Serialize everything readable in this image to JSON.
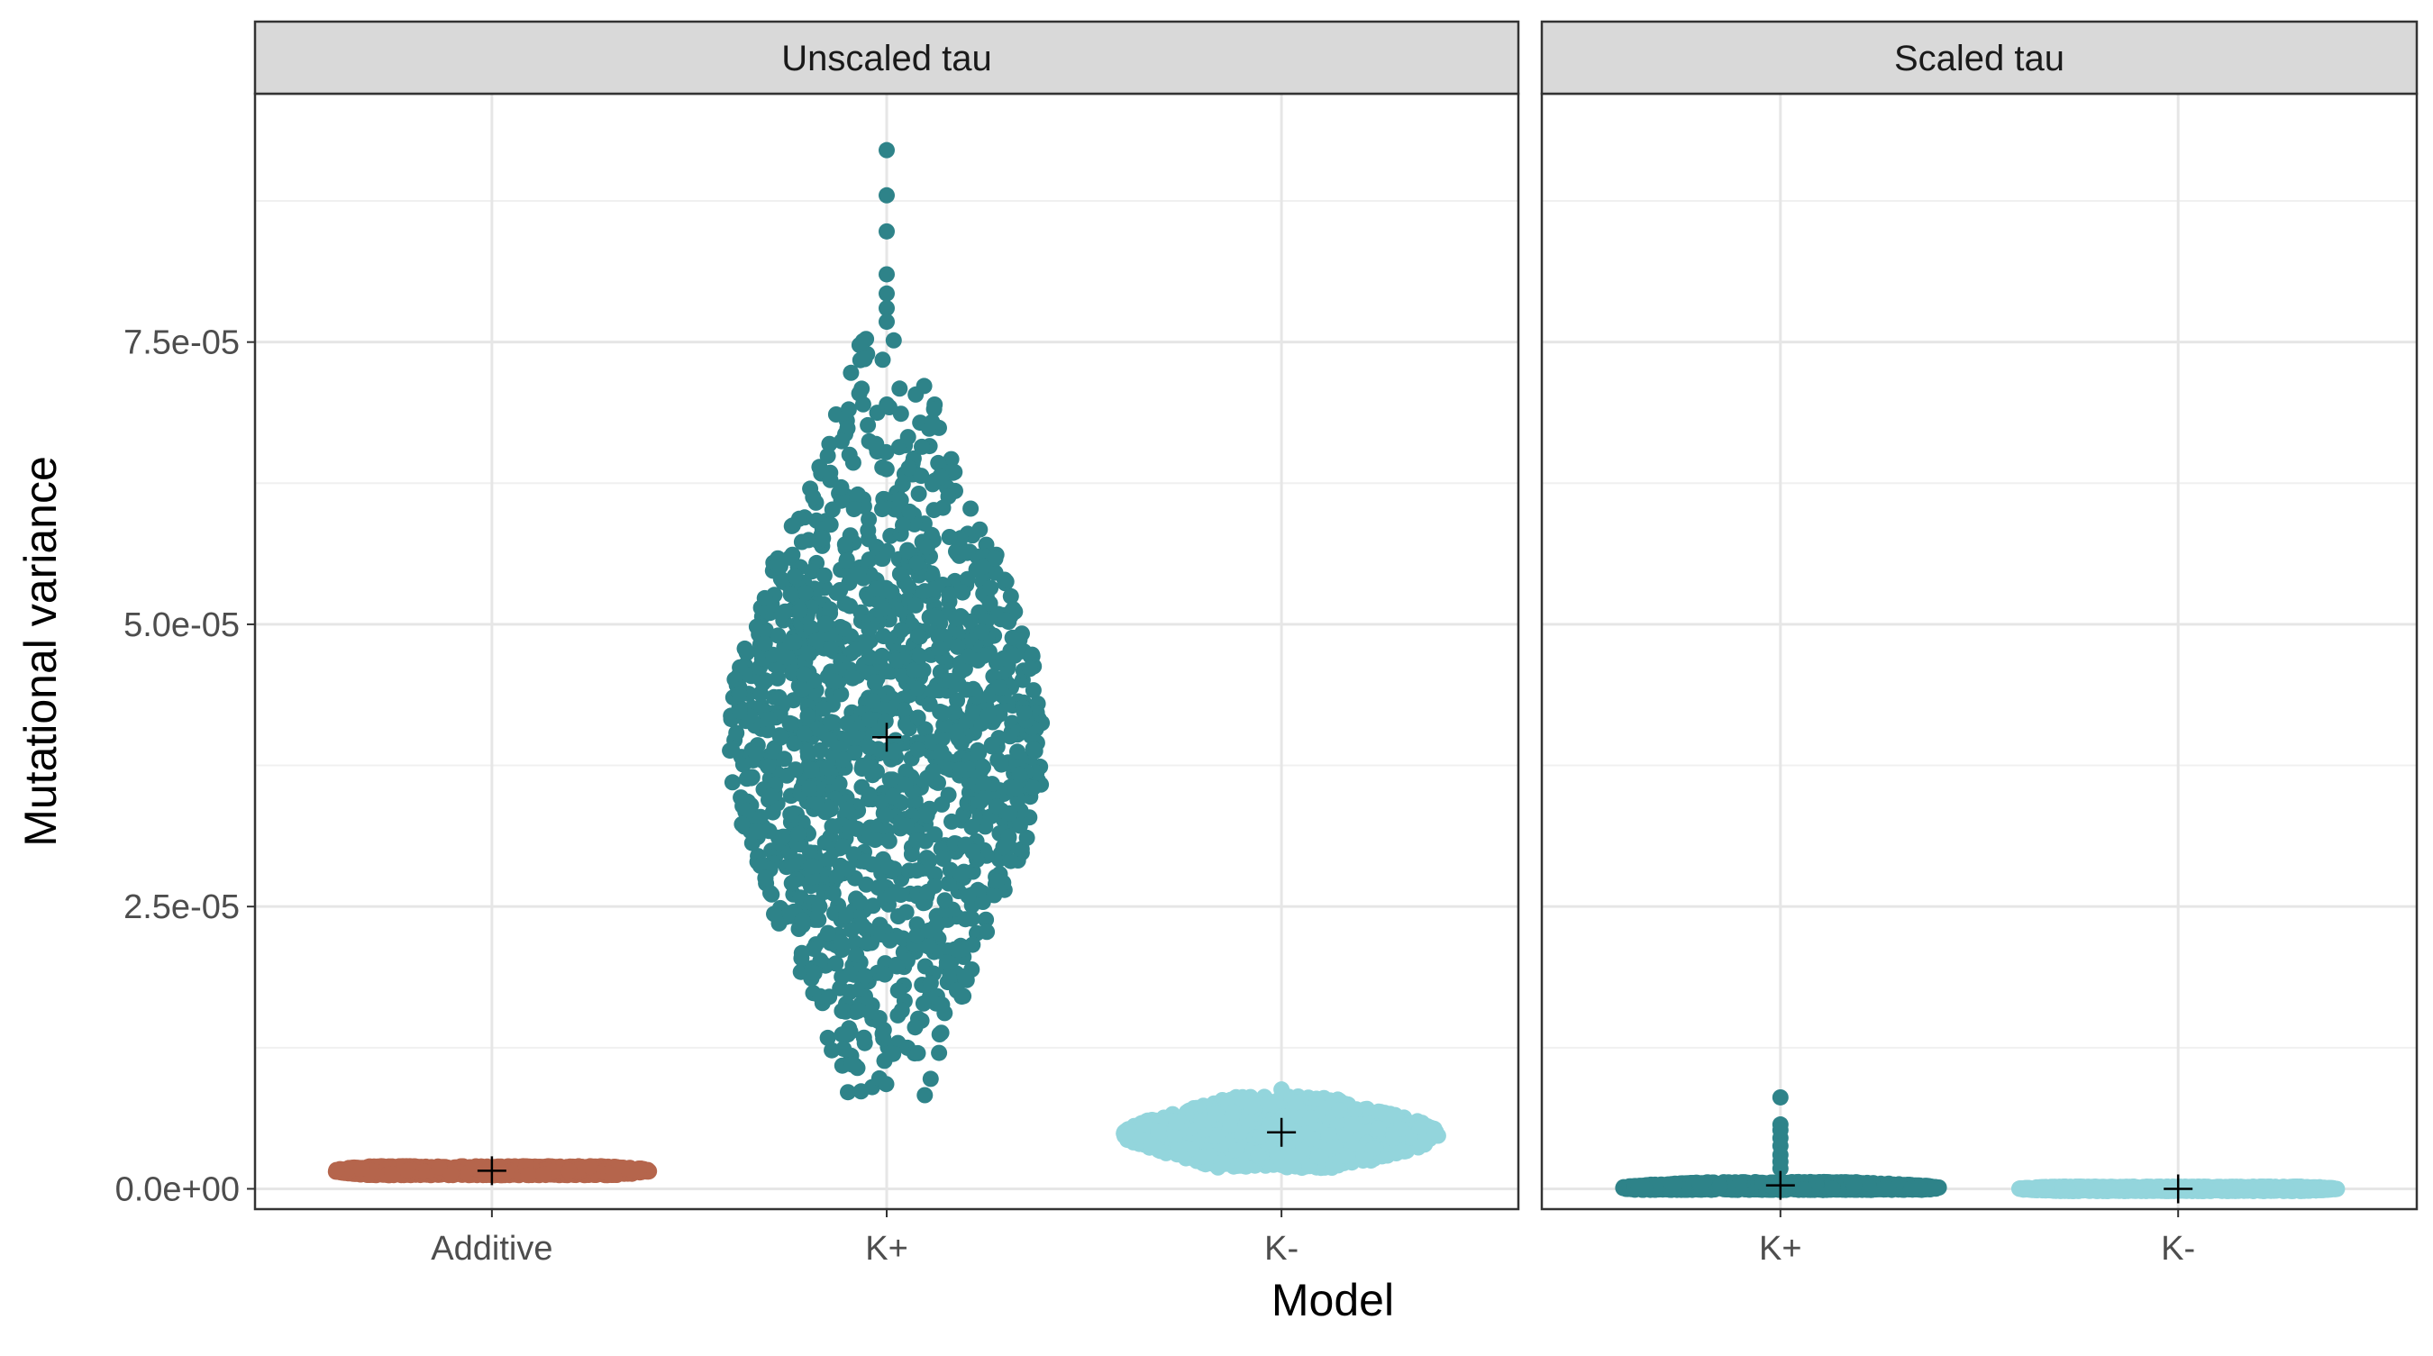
{
  "chart_data": {
    "type": "scatter",
    "subtype": "beeswarm-facets",
    "ylabel": "Mutational variance",
    "xlabel": "Model",
    "ylim": [
      -1.8e-06,
      9.7e-05
    ],
    "yticks": [
      0,
      2.5e-05,
      5e-05,
      7.5e-05
    ],
    "ytick_labels": [
      "0.0e+00",
      "2.5e-05",
      "5.0e-05",
      "7.5e-05"
    ],
    "grid": true,
    "legend": "none",
    "point_colors": {
      "Additive": "#b5654c",
      "K+": "#2e8389",
      "K-": "#93d5dc"
    },
    "mean_marker": "+",
    "facets": [
      {
        "title": "Unscaled tau",
        "categories": [
          "Additive",
          "K+",
          "K-"
        ],
        "groups": [
          {
            "category": "Additive",
            "mean": 1.6e-06,
            "min": 1.2e-06,
            "max": 2e-06,
            "center": 1.6e-06,
            "spread": 4e-07,
            "outliers": []
          },
          {
            "category": "K+",
            "mean": 4e-05,
            "min": 8e-06,
            "max": 7.56e-05,
            "center": 4e-05,
            "spread": 1.4e-05,
            "outliers": [
              9.2e-05,
              8.8e-05,
              8.48e-05,
              8.1e-05,
              7.93e-05,
              7.8e-05,
              7.68e-05
            ]
          },
          {
            "category": "K-",
            "mean": 5e-06,
            "min": 1.8e-06,
            "max": 8.2e-06,
            "center": 4.8e-06,
            "spread": 1.6e-06,
            "outliers": [
              8.8e-06
            ]
          }
        ]
      },
      {
        "title": "Scaled tau",
        "categories": [
          "K+",
          "K-"
        ],
        "groups": [
          {
            "category": "K+",
            "mean": 3e-07,
            "min": -1e-07,
            "max": 6e-07,
            "center": 1e-07,
            "spread": 3e-07,
            "outliers": [
              8.1e-06,
              5.7e-06,
              5.2e-06,
              4.5e-06,
              3.8e-06,
              3e-06,
              2.4e-06,
              1.8e-06
            ]
          },
          {
            "category": "K-",
            "mean": 0.0,
            "min": -2e-07,
            "max": 2e-07,
            "center": 0.0,
            "spread": 2e-07,
            "outliers": []
          }
        ]
      }
    ]
  }
}
